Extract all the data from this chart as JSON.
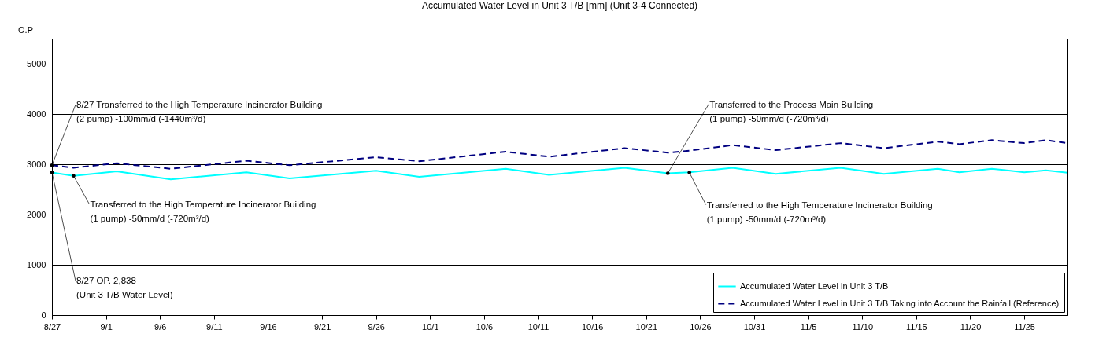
{
  "chart_data": {
    "type": "line",
    "title": "Accumulated Water Level in Unit 3 T/B [mm] (Unit 3-4 Connected)",
    "ylabel": "O.P",
    "xlim": [
      "--08-27",
      "--11-29"
    ],
    "ylim": [
      0,
      5500
    ],
    "xticks": [
      {
        "value": "--08-27",
        "label": "8/27"
      },
      {
        "value": "--09-01",
        "label": "9/1"
      },
      {
        "value": "--09-06",
        "label": "9/6"
      },
      {
        "value": "--09-11",
        "label": "9/11"
      },
      {
        "value": "--09-16",
        "label": "9/16"
      },
      {
        "value": "--09-21",
        "label": "9/21"
      },
      {
        "value": "--09-26",
        "label": "9/26"
      },
      {
        "value": "--10-01",
        "label": "10/1"
      },
      {
        "value": "--10-06",
        "label": "10/6"
      },
      {
        "value": "--10-11",
        "label": "10/11"
      },
      {
        "value": "--10-16",
        "label": "10/16"
      },
      {
        "value": "--10-21",
        "label": "10/21"
      },
      {
        "value": "--10-26",
        "label": "10/26"
      },
      {
        "value": "--10-31",
        "label": "10/31"
      },
      {
        "value": "--11-05",
        "label": "11/5"
      },
      {
        "value": "--11-10",
        "label": "11/10"
      },
      {
        "value": "--11-15",
        "label": "11/15"
      },
      {
        "value": "--11-20",
        "label": "11/20"
      },
      {
        "value": "--11-25",
        "label": "11/25"
      }
    ],
    "yticks": [
      0,
      1000,
      2000,
      3000,
      4000,
      5000
    ],
    "x": [
      "--08-27",
      "--08-29",
      "--09-02",
      "--09-07",
      "--09-14",
      "--09-18",
      "--09-26",
      "--09-30",
      "--10-08",
      "--10-12",
      "--10-19",
      "--10-23",
      "--10-25",
      "--10-29",
      "--11-02",
      "--11-08",
      "--11-12",
      "--11-17",
      "--11-19",
      "--11-22",
      "--11-25",
      "--11-27",
      "--11-29"
    ],
    "series": [
      {
        "name": "Accumulated Water Level in Unit 3 T/B",
        "color": "#00ffff",
        "line_style": "solid",
        "values": [
          2838,
          2770,
          2860,
          2700,
          2840,
          2720,
          2870,
          2750,
          2910,
          2790,
          2930,
          2820,
          2840,
          2930,
          2810,
          2930,
          2810,
          2910,
          2840,
          2910,
          2840,
          2880,
          2830
        ]
      },
      {
        "name": "Accumulated Water Level in Unit 3 T/B Taking into Account the Rainfall (Reference)",
        "color": "#000080",
        "line_style": "dashed",
        "values": [
          2980,
          2930,
          3020,
          2910,
          3070,
          2980,
          3140,
          3060,
          3250,
          3150,
          3320,
          3230,
          3270,
          3380,
          3280,
          3420,
          3320,
          3450,
          3400,
          3480,
          3420,
          3480,
          3420
        ]
      }
    ],
    "annotations": [
      {
        "text": "8/27 Transferred to the High Temperature Incinerator Building\n(2 pump) -100mm/d (-1440m³/d)",
        "x": "--08-27",
        "y": 2980
      },
      {
        "text": "Transferred to the Process Main Building\n(1 pump) -50mm/d (-720m³/d)",
        "x": "--10-23",
        "y": 2820
      },
      {
        "text": "Transferred to the High Temperature Incinerator Building\n(1 pump) -50mm/d (-720m³/d)",
        "x": "--08-29",
        "y": 2770
      },
      {
        "text": "Transferred to the High Temperature Incinerator Building\n(1 pump) -50mm/d (-720m³/d)",
        "x": "--10-25",
        "y": 2835
      },
      {
        "text": "8/27 OP. 2,838\n(Unit 3 T/B Water Level)",
        "x": "--08-27",
        "y": 2838
      }
    ],
    "grid": "y",
    "legend": "bottom right"
  }
}
